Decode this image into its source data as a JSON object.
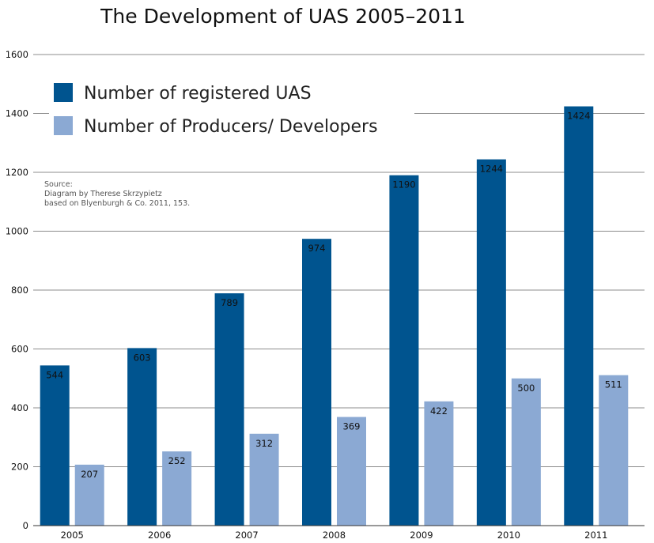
{
  "chart_data": {
    "type": "bar",
    "title": "The Development of UAS 2005–2011",
    "categories": [
      "2005",
      "2006",
      "2007",
      "2008",
      "2009",
      "2010",
      "2011"
    ],
    "series": [
      {
        "name": "Number of registered UAS",
        "values": [
          544,
          603,
          789,
          974,
          1190,
          1244,
          1424
        ],
        "color": "#00548F"
      },
      {
        "name": "Number of Producers/ Developers",
        "values": [
          207,
          252,
          312,
          369,
          422,
          500,
          511
        ],
        "color": "#8BA9D3"
      }
    ],
    "ylim": [
      0,
      1600
    ],
    "yticks": [
      "0",
      "200",
      "400",
      "600",
      "800",
      "1000",
      "1200",
      "1400",
      "1600"
    ],
    "grid": true,
    "legend_position": "top-left",
    "source_note": [
      "Source:",
      "Diagram by Therese Skrzypietz",
      "based on Blyenburgh & Co. 2011, 153."
    ]
  }
}
